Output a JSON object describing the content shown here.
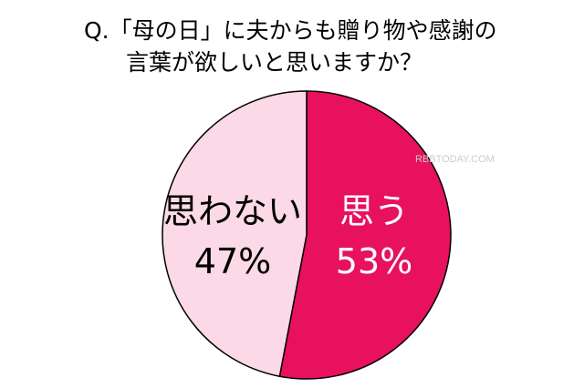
{
  "chart_data": {
    "type": "pie",
    "title_lines": [
      "Q.「母の日」に夫からも贈り物や感謝の",
      "言葉が欲しいと思いますか？"
    ],
    "slices": [
      {
        "label": "思う",
        "value": 53,
        "value_label": "53%",
        "color": "#e8115e",
        "text_color": "#ffffff"
      },
      {
        "label": "思わない",
        "value": 47,
        "value_label": "47%",
        "color": "#fbd9e6",
        "text_color": "#000000"
      }
    ],
    "start": "top",
    "direction": "clockwise"
  },
  "watermark": "RBBTODAY.COM"
}
